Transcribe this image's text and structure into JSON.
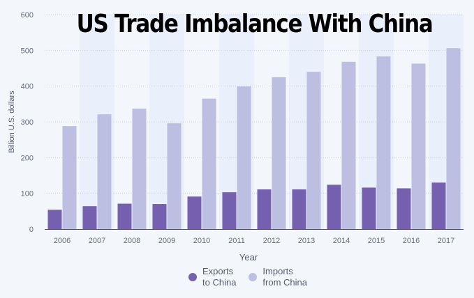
{
  "chart_data": {
    "type": "bar",
    "title": "US Trade Imbalance With China",
    "xlabel": "Year",
    "ylabel": "Billion U.S. dollars",
    "ylim": [
      0,
      600
    ],
    "yticks": [
      0,
      100,
      200,
      300,
      400,
      500,
      600
    ],
    "grid": true,
    "legend_position": "bottom",
    "categories": [
      "2006",
      "2007",
      "2008",
      "2009",
      "2010",
      "2011",
      "2012",
      "2013",
      "2014",
      "2015",
      "2016",
      "2017"
    ],
    "series": [
      {
        "name": "Exports\nto China",
        "color": "#7560b0",
        "values": [
          54,
          64,
          71,
          70,
          91,
          103,
          111,
          111,
          124,
          116,
          114,
          130
        ]
      },
      {
        "name": "Imports\nfrom China",
        "color": "#bcbfe1",
        "values": [
          288,
          321,
          337,
          296,
          365,
          399,
          425,
          440,
          468,
          483,
          463,
          506
        ]
      }
    ]
  }
}
